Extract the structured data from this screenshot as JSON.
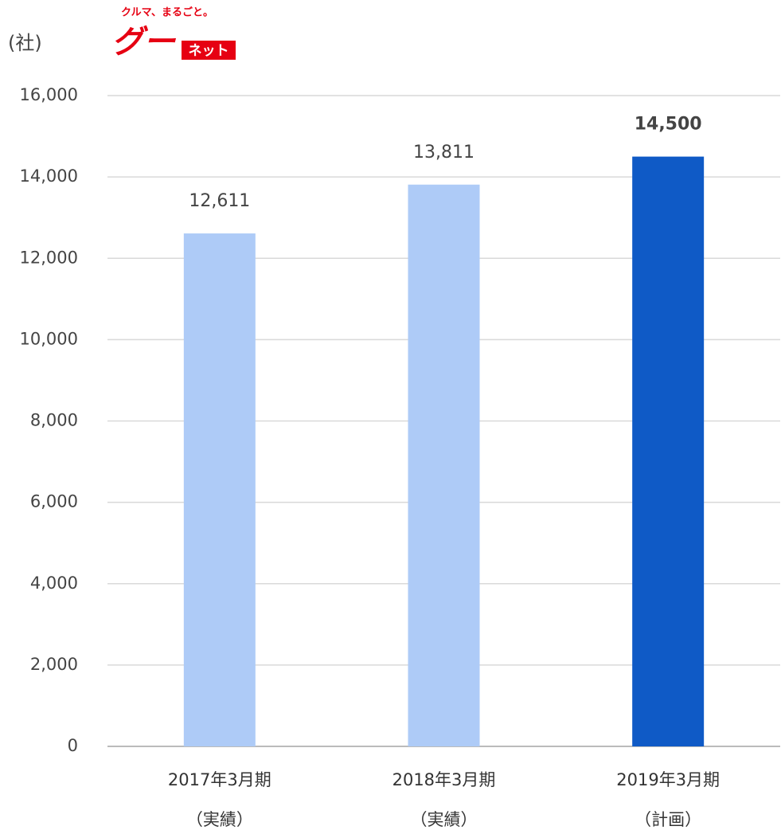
{
  "logo": {
    "tagline": "クルマ、まるごと。",
    "mark": "グー",
    "name": "ネット"
  },
  "chart_data": {
    "type": "bar",
    "y_unit": "(社)",
    "categories": [
      [
        "2017年3月期",
        "（実績）"
      ],
      [
        "2018年3月期",
        "（実績）"
      ],
      [
        "2019年3月期",
        "（計画）"
      ]
    ],
    "values": [
      12611,
      13811,
      14500
    ],
    "value_labels": [
      "12,611",
      "13,811",
      "14,500"
    ],
    "value_label_bold": [
      false,
      false,
      true
    ],
    "colors": [
      "#aecbf7",
      "#aecbf7",
      "#0f5ac6"
    ],
    "ylim": [
      0,
      16000
    ],
    "yticks": [
      0,
      {
        "value": 2000,
        "label": "2,000"
      },
      {
        "value": 4000,
        "label": "4,000"
      },
      {
        "value": 6000,
        "label": "6,000"
      },
      {
        "value": 8000,
        "label": "8,000"
      },
      {
        "value": 10000,
        "label": "10,000"
      },
      {
        "value": 12000,
        "label": "12,000"
      },
      {
        "value": 14000,
        "label": "14,000"
      },
      {
        "value": 16000,
        "label": "16,000"
      }
    ],
    "grid": true
  }
}
